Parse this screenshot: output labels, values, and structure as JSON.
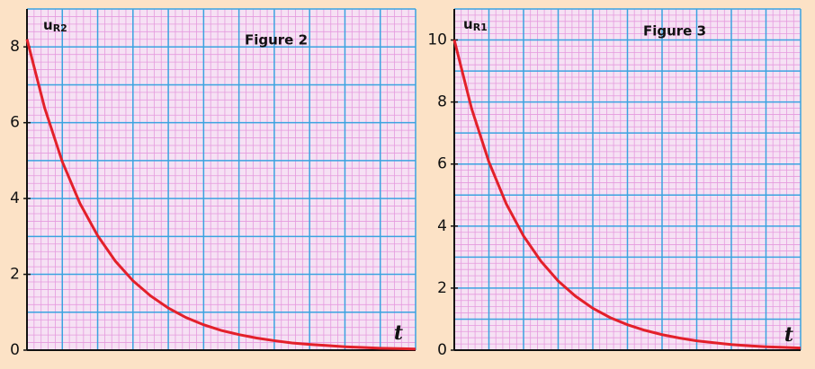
{
  "chart_data": [
    {
      "type": "line",
      "title": "Figure 2",
      "ylabel": "u",
      "ylabel_subscript": "R2",
      "xlabel": "t",
      "x": [
        0,
        0.5,
        1,
        1.5,
        2,
        2.5,
        3,
        3.5,
        4,
        4.5,
        5,
        5.5,
        6,
        6.5,
        7,
        7.5,
        8,
        8.5,
        9,
        9.5,
        10,
        10.5,
        11
      ],
      "series": [
        {
          "color": "#e3202a",
          "values": [
            8.2,
            6.39,
            4.97,
            3.87,
            3.02,
            2.35,
            1.83,
            1.43,
            1.11,
            0.86,
            0.67,
            0.52,
            0.41,
            0.32,
            0.25,
            0.19,
            0.15,
            0.12,
            0.09,
            0.07,
            0.05,
            0.04,
            0.03
          ]
        }
      ],
      "xlim": [
        0,
        11
      ],
      "ylim": [
        0,
        9
      ],
      "yticks": [
        0,
        2,
        4,
        6,
        8
      ],
      "grid": true
    },
    {
      "type": "line",
      "title": "Figure 3",
      "ylabel": "u",
      "ylabel_subscript": "R1",
      "xlabel": "t",
      "x": [
        0,
        0.5,
        1,
        1.5,
        2,
        2.5,
        3,
        3.5,
        4,
        4.5,
        5,
        5.5,
        6,
        6.5,
        7,
        7.5,
        8,
        8.5,
        9,
        9.5,
        10
      ],
      "series": [
        {
          "color": "#e3202a",
          "values": [
            10,
            7.79,
            6.07,
            4.72,
            3.68,
            2.87,
            2.23,
            1.74,
            1.35,
            1.05,
            0.82,
            0.64,
            0.5,
            0.39,
            0.3,
            0.24,
            0.18,
            0.14,
            0.11,
            0.09,
            0.07
          ]
        }
      ],
      "xlim": [
        0,
        10
      ],
      "ylim": [
        0,
        11
      ],
      "yticks": [
        0,
        2,
        4,
        6,
        8,
        10
      ],
      "grid": true
    }
  ]
}
